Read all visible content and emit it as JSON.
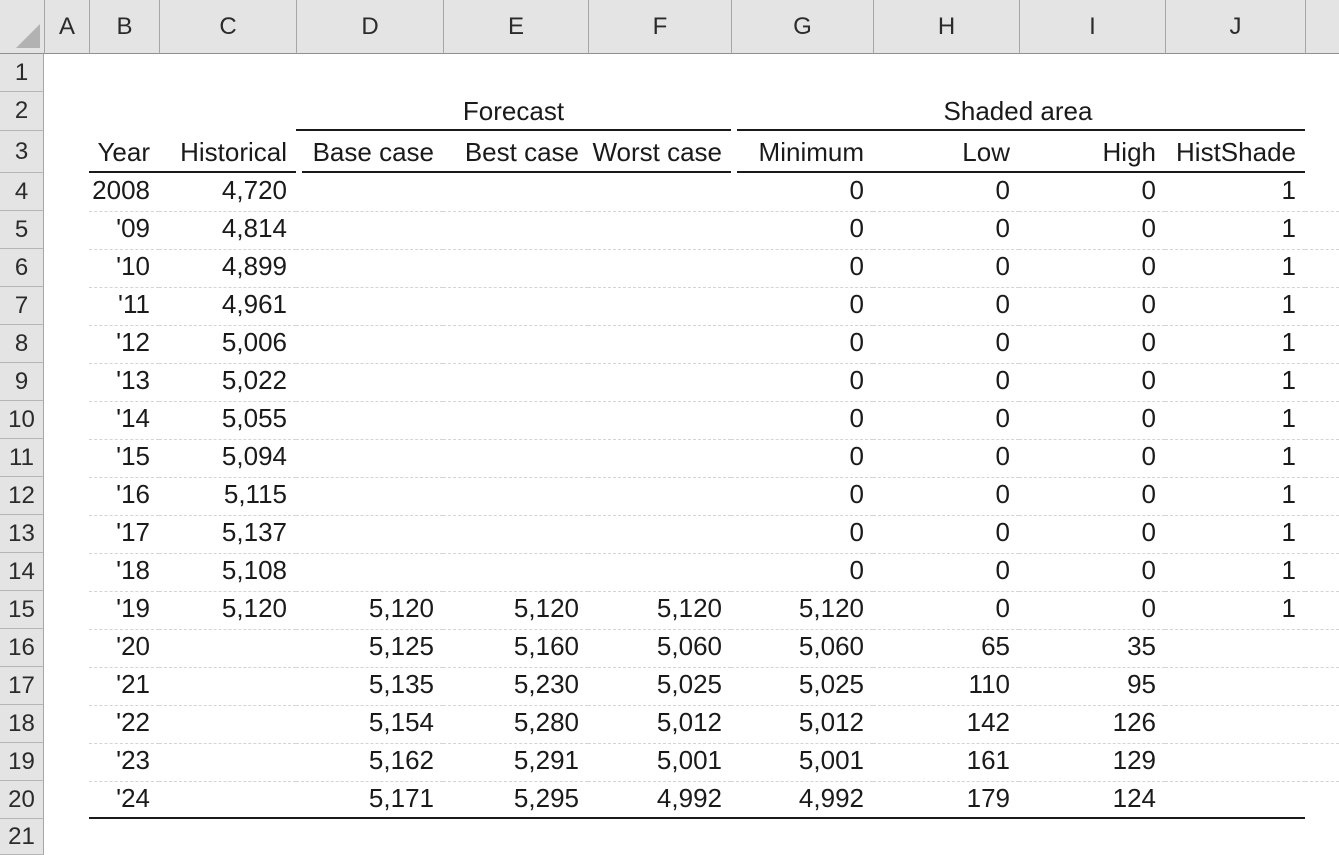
{
  "colors": {
    "header_bg": "#e4e4e4",
    "header_divider": "#a6a6a6",
    "strip_bottom_border": "#8f8f8f",
    "select_all_triangle": "#b2b2b2",
    "dashed_gridline": "#d4d4d4",
    "rule_line": "#1a1a1a",
    "text": "#1a1a1a"
  },
  "sheet": {
    "columns": [
      "A",
      "B",
      "C",
      "D",
      "E",
      "F",
      "G",
      "H",
      "I",
      "J"
    ],
    "gutter": [
      "1",
      "2",
      "3",
      "4",
      "5",
      "6",
      "7",
      "8",
      "9",
      "10",
      "11",
      "12",
      "13",
      "14",
      "15",
      "16",
      "17",
      "18",
      "19",
      "20",
      "21"
    ],
    "groups": {
      "forecast": "Forecast",
      "shaded_area": "Shaded area"
    },
    "headers": {
      "year": "Year",
      "historical": "Historical",
      "base": "Base case",
      "best": "Best case",
      "worst": "Worst case",
      "minimum": "Minimum",
      "low": "Low",
      "high": "High",
      "histshade": "HistShade"
    },
    "data": [
      {
        "year": "2008",
        "historical": "4,720",
        "base": "",
        "best": "",
        "worst": "",
        "minimum": "0",
        "low": "0",
        "high": "0",
        "histshade": "1"
      },
      {
        "year": "'09",
        "historical": "4,814",
        "base": "",
        "best": "",
        "worst": "",
        "minimum": "0",
        "low": "0",
        "high": "0",
        "histshade": "1"
      },
      {
        "year": "'10",
        "historical": "4,899",
        "base": "",
        "best": "",
        "worst": "",
        "minimum": "0",
        "low": "0",
        "high": "0",
        "histshade": "1"
      },
      {
        "year": "'11",
        "historical": "4,961",
        "base": "",
        "best": "",
        "worst": "",
        "minimum": "0",
        "low": "0",
        "high": "0",
        "histshade": "1"
      },
      {
        "year": "'12",
        "historical": "5,006",
        "base": "",
        "best": "",
        "worst": "",
        "minimum": "0",
        "low": "0",
        "high": "0",
        "histshade": "1"
      },
      {
        "year": "'13",
        "historical": "5,022",
        "base": "",
        "best": "",
        "worst": "",
        "minimum": "0",
        "low": "0",
        "high": "0",
        "histshade": "1"
      },
      {
        "year": "'14",
        "historical": "5,055",
        "base": "",
        "best": "",
        "worst": "",
        "minimum": "0",
        "low": "0",
        "high": "0",
        "histshade": "1"
      },
      {
        "year": "'15",
        "historical": "5,094",
        "base": "",
        "best": "",
        "worst": "",
        "minimum": "0",
        "low": "0",
        "high": "0",
        "histshade": "1"
      },
      {
        "year": "'16",
        "historical": "5,115",
        "base": "",
        "best": "",
        "worst": "",
        "minimum": "0",
        "low": "0",
        "high": "0",
        "histshade": "1"
      },
      {
        "year": "'17",
        "historical": "5,137",
        "base": "",
        "best": "",
        "worst": "",
        "minimum": "0",
        "low": "0",
        "high": "0",
        "histshade": "1"
      },
      {
        "year": "'18",
        "historical": "5,108",
        "base": "",
        "best": "",
        "worst": "",
        "minimum": "0",
        "low": "0",
        "high": "0",
        "histshade": "1"
      },
      {
        "year": "'19",
        "historical": "5,120",
        "base": "5,120",
        "best": "5,120",
        "worst": "5,120",
        "minimum": "5,120",
        "low": "0",
        "high": "0",
        "histshade": "1"
      },
      {
        "year": "'20",
        "historical": "",
        "base": "5,125",
        "best": "5,160",
        "worst": "5,060",
        "minimum": "5,060",
        "low": "65",
        "high": "35",
        "histshade": ""
      },
      {
        "year": "'21",
        "historical": "",
        "base": "5,135",
        "best": "5,230",
        "worst": "5,025",
        "minimum": "5,025",
        "low": "110",
        "high": "95",
        "histshade": ""
      },
      {
        "year": "'22",
        "historical": "",
        "base": "5,154",
        "best": "5,280",
        "worst": "5,012",
        "minimum": "5,012",
        "low": "142",
        "high": "126",
        "histshade": ""
      },
      {
        "year": "'23",
        "historical": "",
        "base": "5,162",
        "best": "5,291",
        "worst": "5,001",
        "minimum": "5,001",
        "low": "161",
        "high": "129",
        "histshade": ""
      },
      {
        "year": "'24",
        "historical": "",
        "base": "5,171",
        "best": "5,295",
        "worst": "4,992",
        "minimum": "4,992",
        "low": "179",
        "high": "124",
        "histshade": ""
      }
    ]
  }
}
